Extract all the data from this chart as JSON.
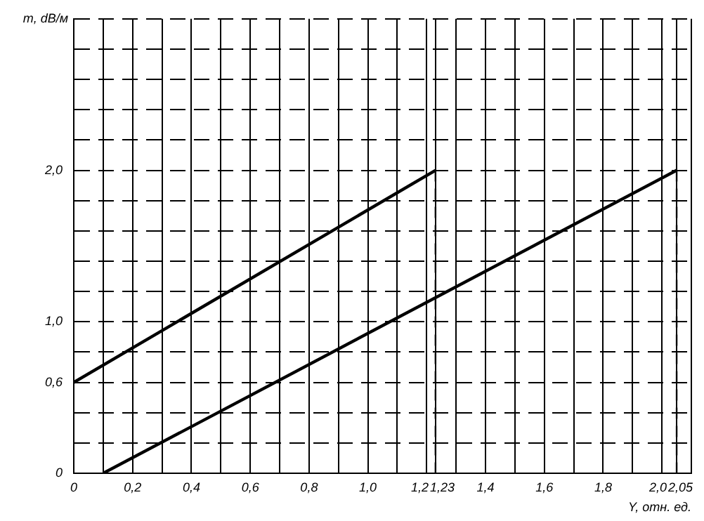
{
  "chart_data": {
    "type": "line",
    "xlabel": "Y, отн. ед.",
    "ylabel": "m, dB/м",
    "xlim": [
      0,
      2.1
    ],
    "ylim": [
      0,
      3.0
    ],
    "xticks": [
      {
        "value": 0,
        "label": "0"
      },
      {
        "value": 0.1,
        "label": null
      },
      {
        "value": 0.2,
        "label": "0,2"
      },
      {
        "value": 0.3,
        "label": null
      },
      {
        "value": 0.4,
        "label": "0,4"
      },
      {
        "value": 0.5,
        "label": null
      },
      {
        "value": 0.6,
        "label": "0,6"
      },
      {
        "value": 0.7,
        "label": null
      },
      {
        "value": 0.8,
        "label": "0,8"
      },
      {
        "value": 0.9,
        "label": null
      },
      {
        "value": 1.0,
        "label": "1,0"
      },
      {
        "value": 1.1,
        "label": null
      },
      {
        "value": 1.2,
        "label": "1,2"
      },
      {
        "value": 1.23,
        "label": "1,23"
      },
      {
        "value": 1.3,
        "label": null
      },
      {
        "value": 1.4,
        "label": "1,4"
      },
      {
        "value": 1.5,
        "label": null
      },
      {
        "value": 1.6,
        "label": "1,6"
      },
      {
        "value": 1.7,
        "label": null
      },
      {
        "value": 1.8,
        "label": "1,8"
      },
      {
        "value": 1.9,
        "label": null
      },
      {
        "value": 2.0,
        "label": "2,0"
      },
      {
        "value": 2.05,
        "label": "2,05"
      },
      {
        "value": 2.1,
        "label": null
      }
    ],
    "yticks": [
      {
        "value": 0,
        "label": "0"
      },
      {
        "value": 0.2,
        "label": null
      },
      {
        "value": 0.4,
        "label": null
      },
      {
        "value": 0.6,
        "label": "0,6"
      },
      {
        "value": 0.8,
        "label": null
      },
      {
        "value": 1.0,
        "label": "1,0"
      },
      {
        "value": 1.2,
        "label": null
      },
      {
        "value": 1.4,
        "label": null
      },
      {
        "value": 1.6,
        "label": null
      },
      {
        "value": 1.8,
        "label": null
      },
      {
        "value": 2.0,
        "label": "2,0"
      },
      {
        "value": 2.2,
        "label": null
      },
      {
        "value": 2.4,
        "label": null
      },
      {
        "value": 2.6,
        "label": null
      },
      {
        "value": 2.8,
        "label": null
      },
      {
        "value": 3.0,
        "label": null
      }
    ],
    "grid": true,
    "legend": false,
    "marker": "none",
    "series": [
      {
        "color": "#000000",
        "x": [
          0,
          1.23
        ],
        "values": [
          0.6,
          2.0
        ]
      },
      {
        "color": "#000000",
        "x": [
          0.1,
          2.05
        ],
        "values": [
          0,
          2.0
        ]
      },
      {
        "color": "#000000",
        "x": [
          1.23,
          1.23
        ],
        "values": [
          2.0,
          0
        ],
        "line_style": "dashed"
      },
      {
        "color": "#000000",
        "x": [
          2.05,
          2.05
        ],
        "values": [
          2.0,
          0
        ],
        "line_style": "dashed"
      }
    ]
  }
}
